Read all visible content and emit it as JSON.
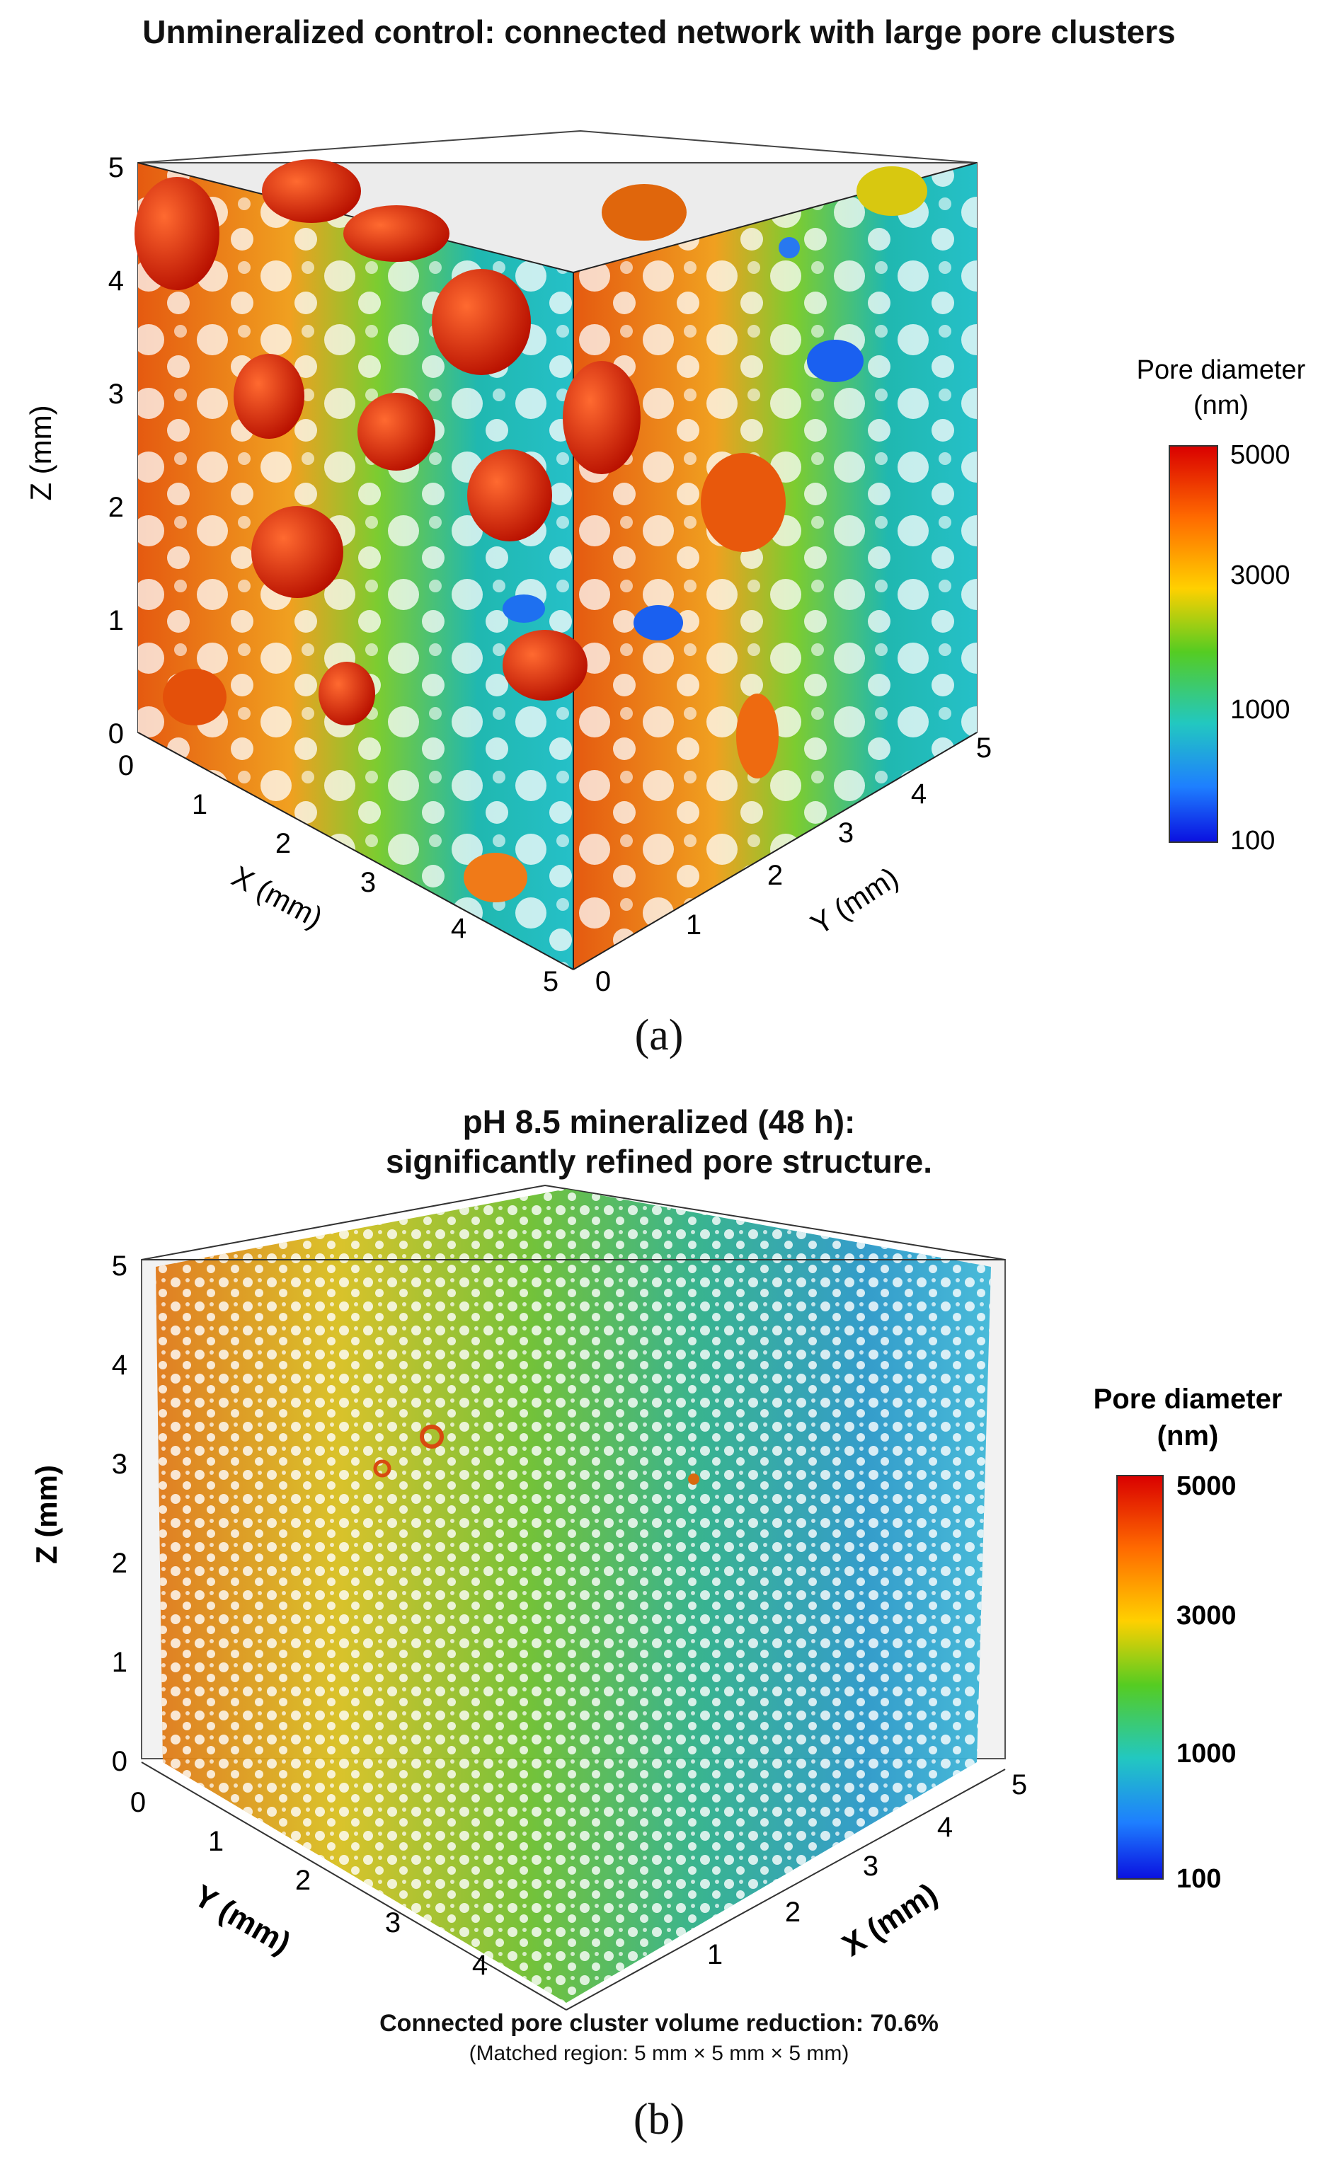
{
  "panel_a": {
    "title": "Unmineralized control: connected network with large pore clusters",
    "caption": "(a)",
    "axes": {
      "z_label": "Z (mm)",
      "x_label": "X (mm)",
      "y_label": "Y (mm)",
      "z_ticks": [
        "0",
        "1",
        "2",
        "3",
        "4",
        "5"
      ],
      "x_ticks": [
        "0",
        "1",
        "2",
        "3",
        "4",
        "5"
      ],
      "y_ticks": [
        "0",
        "1",
        "2",
        "3",
        "4",
        "5"
      ]
    },
    "colorbar": {
      "title_line1": "Pore diameter",
      "title_line2": "(nm)",
      "ticks": [
        "5000",
        "3000",
        "1000",
        "100"
      ]
    }
  },
  "panel_b": {
    "title_line1": "pH 8.5 mineralized (48 h):",
    "title_line2": "significantly refined pore structure.",
    "caption": "(b)",
    "axes": {
      "z_label": "Z (mm)",
      "y_label": "Y (mm)",
      "x_label": "X (mm)",
      "z_ticks": [
        "0",
        "1",
        "2",
        "3",
        "4",
        "5"
      ],
      "y_ticks": [
        "0",
        "1",
        "2",
        "3",
        "4"
      ],
      "x_ticks": [
        "1",
        "2",
        "3",
        "4",
        "5"
      ]
    },
    "colorbar": {
      "title_line1": "Pore diameter",
      "title_line2": "(nm)",
      "ticks": [
        "5000",
        "3000",
        "1000",
        "100"
      ]
    },
    "note_line1": "Connected pore cluster volume reduction: 70.6%",
    "note_line2": "(Matched region: 5 mm × 5 mm × 5 mm)"
  },
  "colors": {
    "scale": [
      "#d90000",
      "#ff5a00",
      "#ffaa00",
      "#e6e000",
      "#55cc22",
      "#22c0a0",
      "#1e90ff",
      "#0a10e0"
    ]
  }
}
